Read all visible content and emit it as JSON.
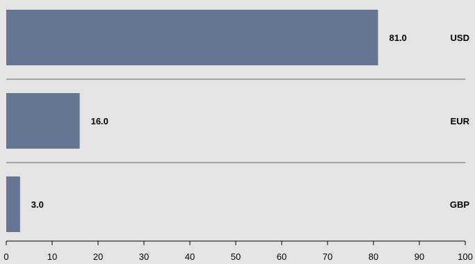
{
  "chart_data": {
    "type": "bar",
    "orientation": "horizontal",
    "categories": [
      "USD",
      "EUR",
      "GBP"
    ],
    "values": [
      81.0,
      16.0,
      3.0
    ],
    "value_labels": [
      "81.0",
      "16.0",
      "3.0"
    ],
    "title": "",
    "xlabel": "",
    "ylabel": "",
    "xlim": [
      0,
      100
    ],
    "x_ticks": [
      0,
      10,
      20,
      30,
      40,
      50,
      60,
      70,
      80,
      90,
      100
    ],
    "grid": false,
    "legend": "none",
    "colors": {
      "bar": "#667594",
      "background": "#e4e4e4",
      "separator": "#666666"
    }
  }
}
